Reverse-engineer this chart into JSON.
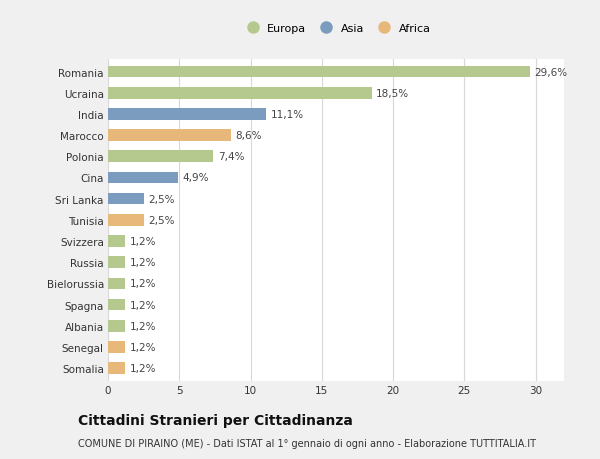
{
  "categories": [
    "Romania",
    "Ucraina",
    "India",
    "Marocco",
    "Polonia",
    "Cina",
    "Sri Lanka",
    "Tunisia",
    "Svizzera",
    "Russia",
    "Bielorussia",
    "Spagna",
    "Albania",
    "Senegal",
    "Somalia"
  ],
  "values": [
    29.6,
    18.5,
    11.1,
    8.6,
    7.4,
    4.9,
    2.5,
    2.5,
    1.2,
    1.2,
    1.2,
    1.2,
    1.2,
    1.2,
    1.2
  ],
  "labels": [
    "29,6%",
    "18,5%",
    "11,1%",
    "8,6%",
    "7,4%",
    "4,9%",
    "2,5%",
    "2,5%",
    "1,2%",
    "1,2%",
    "1,2%",
    "1,2%",
    "1,2%",
    "1,2%",
    "1,2%"
  ],
  "continent": [
    "Europa",
    "Europa",
    "Asia",
    "Africa",
    "Europa",
    "Asia",
    "Asia",
    "Africa",
    "Europa",
    "Europa",
    "Europa",
    "Europa",
    "Europa",
    "Africa",
    "Africa"
  ],
  "colors": {
    "Europa": "#b5c98e",
    "Asia": "#7b9cbf",
    "Africa": "#e8b87a"
  },
  "legend_labels": [
    "Europa",
    "Asia",
    "Africa"
  ],
  "title": "Cittadini Stranieri per Cittadinanza",
  "subtitle": "COMUNE DI PIRAINO (ME) - Dati ISTAT al 1° gennaio di ogni anno - Elaborazione TUTTITALIA.IT",
  "xlim": [
    0,
    32
  ],
  "xticks": [
    0,
    5,
    10,
    15,
    20,
    25,
    30
  ],
  "bg_color": "#f0f0f0",
  "plot_bg_color": "#ffffff",
  "grid_color": "#d8d8d8",
  "bar_height": 0.55,
  "label_fontsize": 7.5,
  "tick_fontsize": 7.5,
  "title_fontsize": 10,
  "subtitle_fontsize": 7
}
